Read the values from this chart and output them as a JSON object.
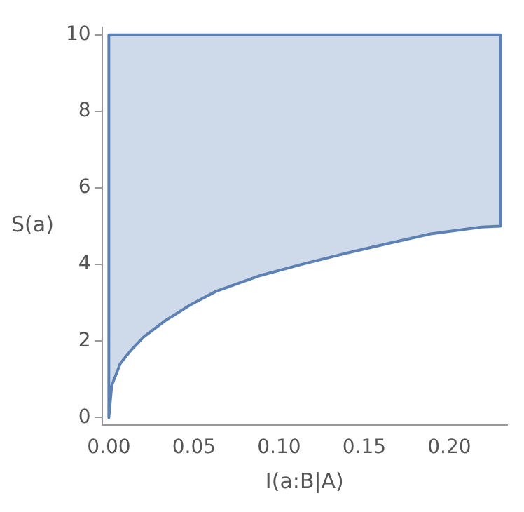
{
  "chart_data": {
    "type": "area",
    "xlabel": "I(a:B|A)",
    "ylabel": "S(a)",
    "series": [
      {
        "color": "#5e81b5",
        "x": [
          0,
          0,
          0.0017,
          0.0068,
          0.013,
          0.0205,
          0.033,
          0.048,
          0.063,
          0.088,
          0.113,
          0.138,
          0.163,
          0.189,
          0.219,
          0.23,
          0.23,
          0
        ],
        "values": [
          10,
          0,
          0.84,
          1.42,
          1.76,
          2.11,
          2.53,
          2.95,
          3.3,
          3.7,
          4.0,
          4.28,
          4.54,
          4.8,
          4.98,
          5.0,
          10,
          10
        ]
      }
    ],
    "xlim": [
      -0.004,
      0.234
    ],
    "xticks": [
      {
        "value": 0,
        "label": "0.00"
      },
      {
        "value": 0.05,
        "label": "0.05"
      },
      {
        "value": 0.1,
        "label": "0.10"
      },
      {
        "value": 0.15,
        "label": "0.15"
      },
      {
        "value": 0.2,
        "label": "0.20"
      }
    ],
    "ylim": [
      -0.2,
      10.2
    ],
    "yticks": [
      0,
      2,
      4,
      6,
      8,
      10
    ],
    "grid": false,
    "legend": false
  }
}
